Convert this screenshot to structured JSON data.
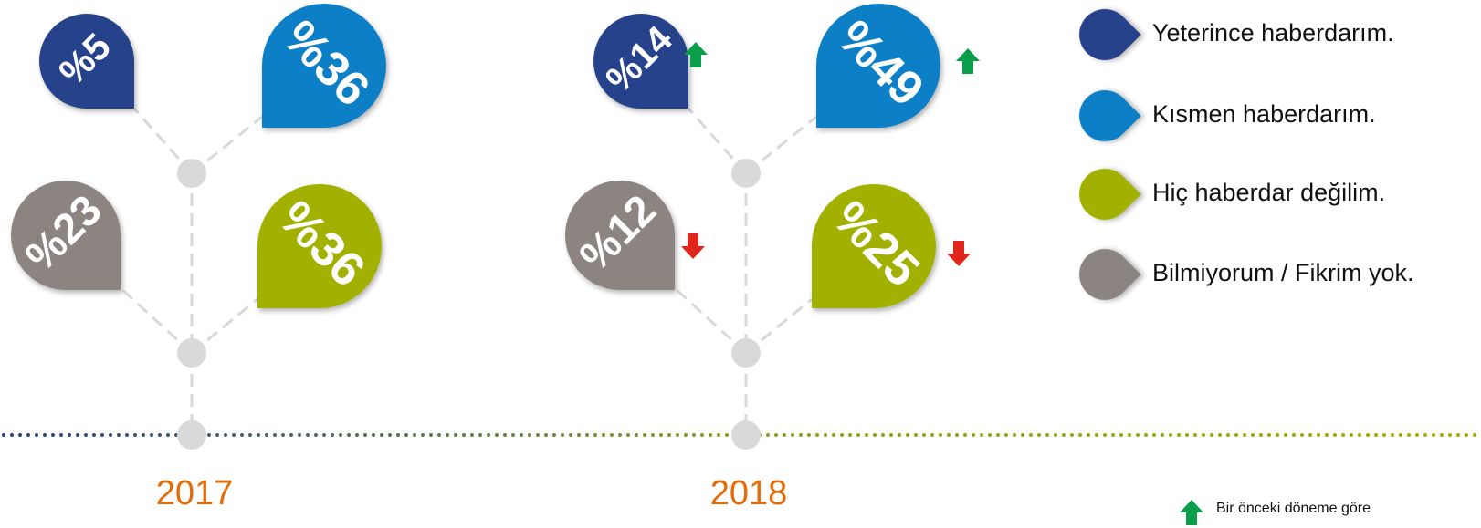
{
  "legend": [
    {
      "name": "Yeterince haberdarım.",
      "color": "#27428a"
    },
    {
      "name": "Kısmen haberdarım.",
      "color": "#0a7fc6"
    },
    {
      "name": "Hiç haberdar değilim.",
      "color": "#a2b100"
    },
    {
      "name": "Bilmiyorum / Fikrim yok.",
      "color": "#8c8480"
    }
  ],
  "timeline": [
    {
      "year": "2017",
      "items": [
        {
          "category": 0,
          "label": "%5"
        },
        {
          "category": 1,
          "label": "%36"
        },
        {
          "category": 3,
          "label": "%23"
        },
        {
          "category": 2,
          "label": "%36"
        }
      ]
    },
    {
      "year": "2018",
      "items": [
        {
          "category": 0,
          "label": "%14",
          "trend": "up"
        },
        {
          "category": 1,
          "label": "%49",
          "trend": "up"
        },
        {
          "category": 3,
          "label": "%12",
          "trend": "down"
        },
        {
          "category": 2,
          "label": "%25",
          "trend": "down"
        }
      ]
    }
  ],
  "footnote": {
    "text": "Bir önceki döneme göre",
    "trend": "up"
  }
}
